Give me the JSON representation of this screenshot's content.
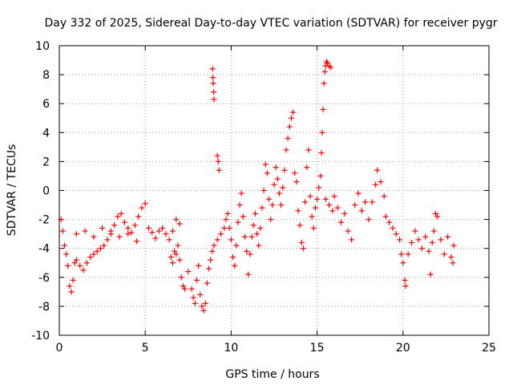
{
  "chart_data": {
    "type": "scatter",
    "title": "Day 332 of 2025, Sidereal Day-to-day VTEC variation (SDTVAR) for receiver pygr",
    "xlabel": "GPS time / hours",
    "ylabel": "SDTVAR / TECUs",
    "xlim": [
      0,
      25
    ],
    "ylim": [
      -10,
      10
    ],
    "x_ticks": [
      0,
      5,
      10,
      15,
      20,
      25
    ],
    "y_ticks": [
      -10,
      -8,
      -6,
      -4,
      -2,
      0,
      2,
      4,
      6,
      8,
      10
    ],
    "x_tick_labels": [
      "0",
      "5",
      "10",
      "15",
      "20",
      "25"
    ],
    "y_tick_labels": [
      "-10",
      "-8",
      "-6",
      "-4",
      "-2",
      "0",
      "2",
      "4",
      "6",
      "8",
      "10"
    ],
    "grid": true,
    "marker": "+",
    "marker_color": "#ff0000",
    "series": [
      {
        "name": "SDTVAR",
        "points": [
          [
            0.1,
            -2.0
          ],
          [
            0.2,
            -2.8
          ],
          [
            0.3,
            -3.8
          ],
          [
            0.4,
            -4.4
          ],
          [
            0.5,
            -5.2
          ],
          [
            0.6,
            -6.6
          ],
          [
            0.7,
            -7.0
          ],
          [
            0.8,
            -6.2
          ],
          [
            0.9,
            -5.0
          ],
          [
            1.0,
            -4.8
          ],
          [
            1.2,
            -5.2
          ],
          [
            1.4,
            -5.5
          ],
          [
            1.6,
            -5.0
          ],
          [
            1.8,
            -4.6
          ],
          [
            2.0,
            -4.4
          ],
          [
            2.2,
            -4.2
          ],
          [
            2.4,
            -4.0
          ],
          [
            2.6,
            -3.8
          ],
          [
            2.8,
            -3.4
          ],
          [
            3.0,
            -3.0
          ],
          [
            3.2,
            -2.4
          ],
          [
            3.4,
            -1.8
          ],
          [
            3.6,
            -1.6
          ],
          [
            3.8,
            -2.2
          ],
          [
            4.0,
            -2.6
          ],
          [
            4.2,
            -2.9
          ],
          [
            4.4,
            -2.4
          ],
          [
            4.6,
            -1.8
          ],
          [
            4.8,
            -1.2
          ],
          [
            5.0,
            -0.9
          ],
          [
            1.0,
            -3.0
          ],
          [
            1.5,
            -2.8
          ],
          [
            2.0,
            -3.2
          ],
          [
            2.5,
            -2.6
          ],
          [
            3.0,
            -2.8
          ],
          [
            3.5,
            -3.2
          ],
          [
            4.0,
            -3.0
          ],
          [
            4.5,
            -3.5
          ],
          [
            5.2,
            -2.6
          ],
          [
            5.4,
            -2.9
          ],
          [
            5.6,
            -3.3
          ],
          [
            5.8,
            -2.8
          ],
          [
            6.0,
            -2.6
          ],
          [
            6.2,
            -3.0
          ],
          [
            6.4,
            -3.4
          ],
          [
            6.6,
            -2.8
          ],
          [
            6.8,
            -2.0
          ],
          [
            7.0,
            -2.3
          ],
          [
            6.5,
            -4.6
          ],
          [
            6.6,
            -5.0
          ],
          [
            6.7,
            -4.2
          ],
          [
            6.8,
            -4.4
          ],
          [
            6.9,
            -3.8
          ],
          [
            7.0,
            -4.8
          ],
          [
            7.1,
            -6.0
          ],
          [
            7.2,
            -6.6
          ],
          [
            7.3,
            -6.8
          ],
          [
            7.5,
            -5.6
          ],
          [
            7.7,
            -6.8
          ],
          [
            7.8,
            -7.4
          ],
          [
            7.9,
            -7.8
          ],
          [
            8.0,
            -6.2
          ],
          [
            8.1,
            -5.2
          ],
          [
            8.2,
            -7.2
          ],
          [
            8.3,
            -8.0
          ],
          [
            8.4,
            -8.3
          ],
          [
            8.5,
            -7.8
          ],
          [
            8.6,
            -6.4
          ],
          [
            8.7,
            -5.4
          ],
          [
            8.8,
            -4.8
          ],
          [
            8.9,
            -4.2
          ],
          [
            9.0,
            -3.8
          ],
          [
            9.2,
            -3.4
          ],
          [
            9.4,
            -3.0
          ],
          [
            9.6,
            -2.6
          ],
          [
            8.92,
            8.4
          ],
          [
            8.94,
            7.8
          ],
          [
            8.96,
            7.4
          ],
          [
            8.98,
            6.8
          ],
          [
            9.0,
            6.3
          ],
          [
            9.2,
            2.4
          ],
          [
            9.25,
            2.0
          ],
          [
            9.3,
            1.4
          ],
          [
            9.7,
            -2.0
          ],
          [
            9.8,
            -1.6
          ],
          [
            9.9,
            -2.6
          ],
          [
            10.0,
            -3.4
          ],
          [
            10.1,
            -4.6
          ],
          [
            10.2,
            -5.2
          ],
          [
            10.3,
            -3.8
          ],
          [
            10.4,
            -2.2
          ],
          [
            10.5,
            -1.0
          ],
          [
            10.6,
            -0.2
          ],
          [
            10.7,
            -1.8
          ],
          [
            10.8,
            -3.2
          ],
          [
            10.9,
            -4.2
          ],
          [
            11.0,
            -5.8
          ],
          [
            11.1,
            -4.4
          ],
          [
            11.2,
            -3.2
          ],
          [
            11.3,
            -2.4
          ],
          [
            11.4,
            -1.6
          ],
          [
            11.5,
            -3.0
          ],
          [
            11.6,
            -3.8
          ],
          [
            11.7,
            -2.6
          ],
          [
            11.8,
            -1.2
          ],
          [
            11.9,
            0.0
          ],
          [
            12.0,
            1.8
          ],
          [
            12.1,
            1.2
          ],
          [
            12.2,
            -0.6
          ],
          [
            12.3,
            -2.0
          ],
          [
            12.4,
            -1.0
          ],
          [
            12.5,
            0.4
          ],
          [
            12.6,
            1.6
          ],
          [
            12.7,
            0.8
          ],
          [
            12.8,
            -0.2
          ],
          [
            12.9,
            -1.0
          ],
          [
            13.0,
            0.2
          ],
          [
            13.1,
            1.4
          ],
          [
            13.2,
            2.8
          ],
          [
            13.3,
            3.6
          ],
          [
            13.4,
            4.4
          ],
          [
            13.5,
            5.0
          ],
          [
            13.6,
            5.4
          ],
          [
            13.7,
            1.2
          ],
          [
            13.8,
            0.6
          ],
          [
            13.9,
            -1.4
          ],
          [
            14.0,
            -2.4
          ],
          [
            14.1,
            -3.6
          ],
          [
            14.2,
            -4.0
          ],
          [
            14.3,
            -0.8
          ],
          [
            14.4,
            1.6
          ],
          [
            14.5,
            2.8
          ],
          [
            14.6,
            -0.4
          ],
          [
            14.7,
            -1.8
          ],
          [
            14.8,
            -2.6
          ],
          [
            14.9,
            -1.2
          ],
          [
            15.0,
            -0.6
          ],
          [
            15.1,
            0.2
          ],
          [
            15.2,
            1.0
          ],
          [
            15.25,
            2.6
          ],
          [
            15.3,
            4.0
          ],
          [
            15.35,
            5.6
          ],
          [
            15.4,
            7.4
          ],
          [
            15.45,
            8.2
          ],
          [
            15.5,
            8.6
          ],
          [
            15.55,
            8.9
          ],
          [
            15.6,
            8.8
          ],
          [
            15.7,
            8.6
          ],
          [
            15.8,
            8.5
          ],
          [
            15.5,
            -0.6
          ],
          [
            15.7,
            -1.0
          ],
          [
            15.9,
            -1.4
          ],
          [
            16.0,
            -0.4
          ],
          [
            16.2,
            -1.2
          ],
          [
            16.4,
            -2.2
          ],
          [
            16.6,
            -1.6
          ],
          [
            16.8,
            -2.8
          ],
          [
            17.0,
            -3.4
          ],
          [
            17.2,
            -1.0
          ],
          [
            17.4,
            -0.2
          ],
          [
            17.6,
            -1.4
          ],
          [
            17.8,
            -0.8
          ],
          [
            18.0,
            -2.0
          ],
          [
            18.2,
            -0.8
          ],
          [
            18.4,
            0.4
          ],
          [
            18.5,
            1.4
          ],
          [
            18.7,
            0.6
          ],
          [
            18.9,
            -0.4
          ],
          [
            19.0,
            -1.8
          ],
          [
            19.2,
            -2.2
          ],
          [
            19.4,
            -2.6
          ],
          [
            19.6,
            -3.0
          ],
          [
            19.8,
            -3.4
          ],
          [
            19.9,
            -4.4
          ],
          [
            20.0,
            -5.0
          ],
          [
            20.1,
            -6.2
          ],
          [
            20.15,
            -6.6
          ],
          [
            20.3,
            -4.4
          ],
          [
            20.5,
            -3.6
          ],
          [
            20.7,
            -2.8
          ],
          [
            20.9,
            -3.4
          ],
          [
            21.1,
            -4.0
          ],
          [
            21.3,
            -3.2
          ],
          [
            21.5,
            -4.2
          ],
          [
            21.6,
            -5.8
          ],
          [
            21.7,
            -3.6
          ],
          [
            21.8,
            -2.8
          ],
          [
            21.9,
            -1.6
          ],
          [
            22.0,
            -1.8
          ],
          [
            22.2,
            -3.4
          ],
          [
            22.4,
            -4.4
          ],
          [
            22.6,
            -3.2
          ],
          [
            22.8,
            -4.6
          ],
          [
            22.9,
            -5.0
          ],
          [
            22.95,
            -3.8
          ]
        ]
      }
    ]
  }
}
